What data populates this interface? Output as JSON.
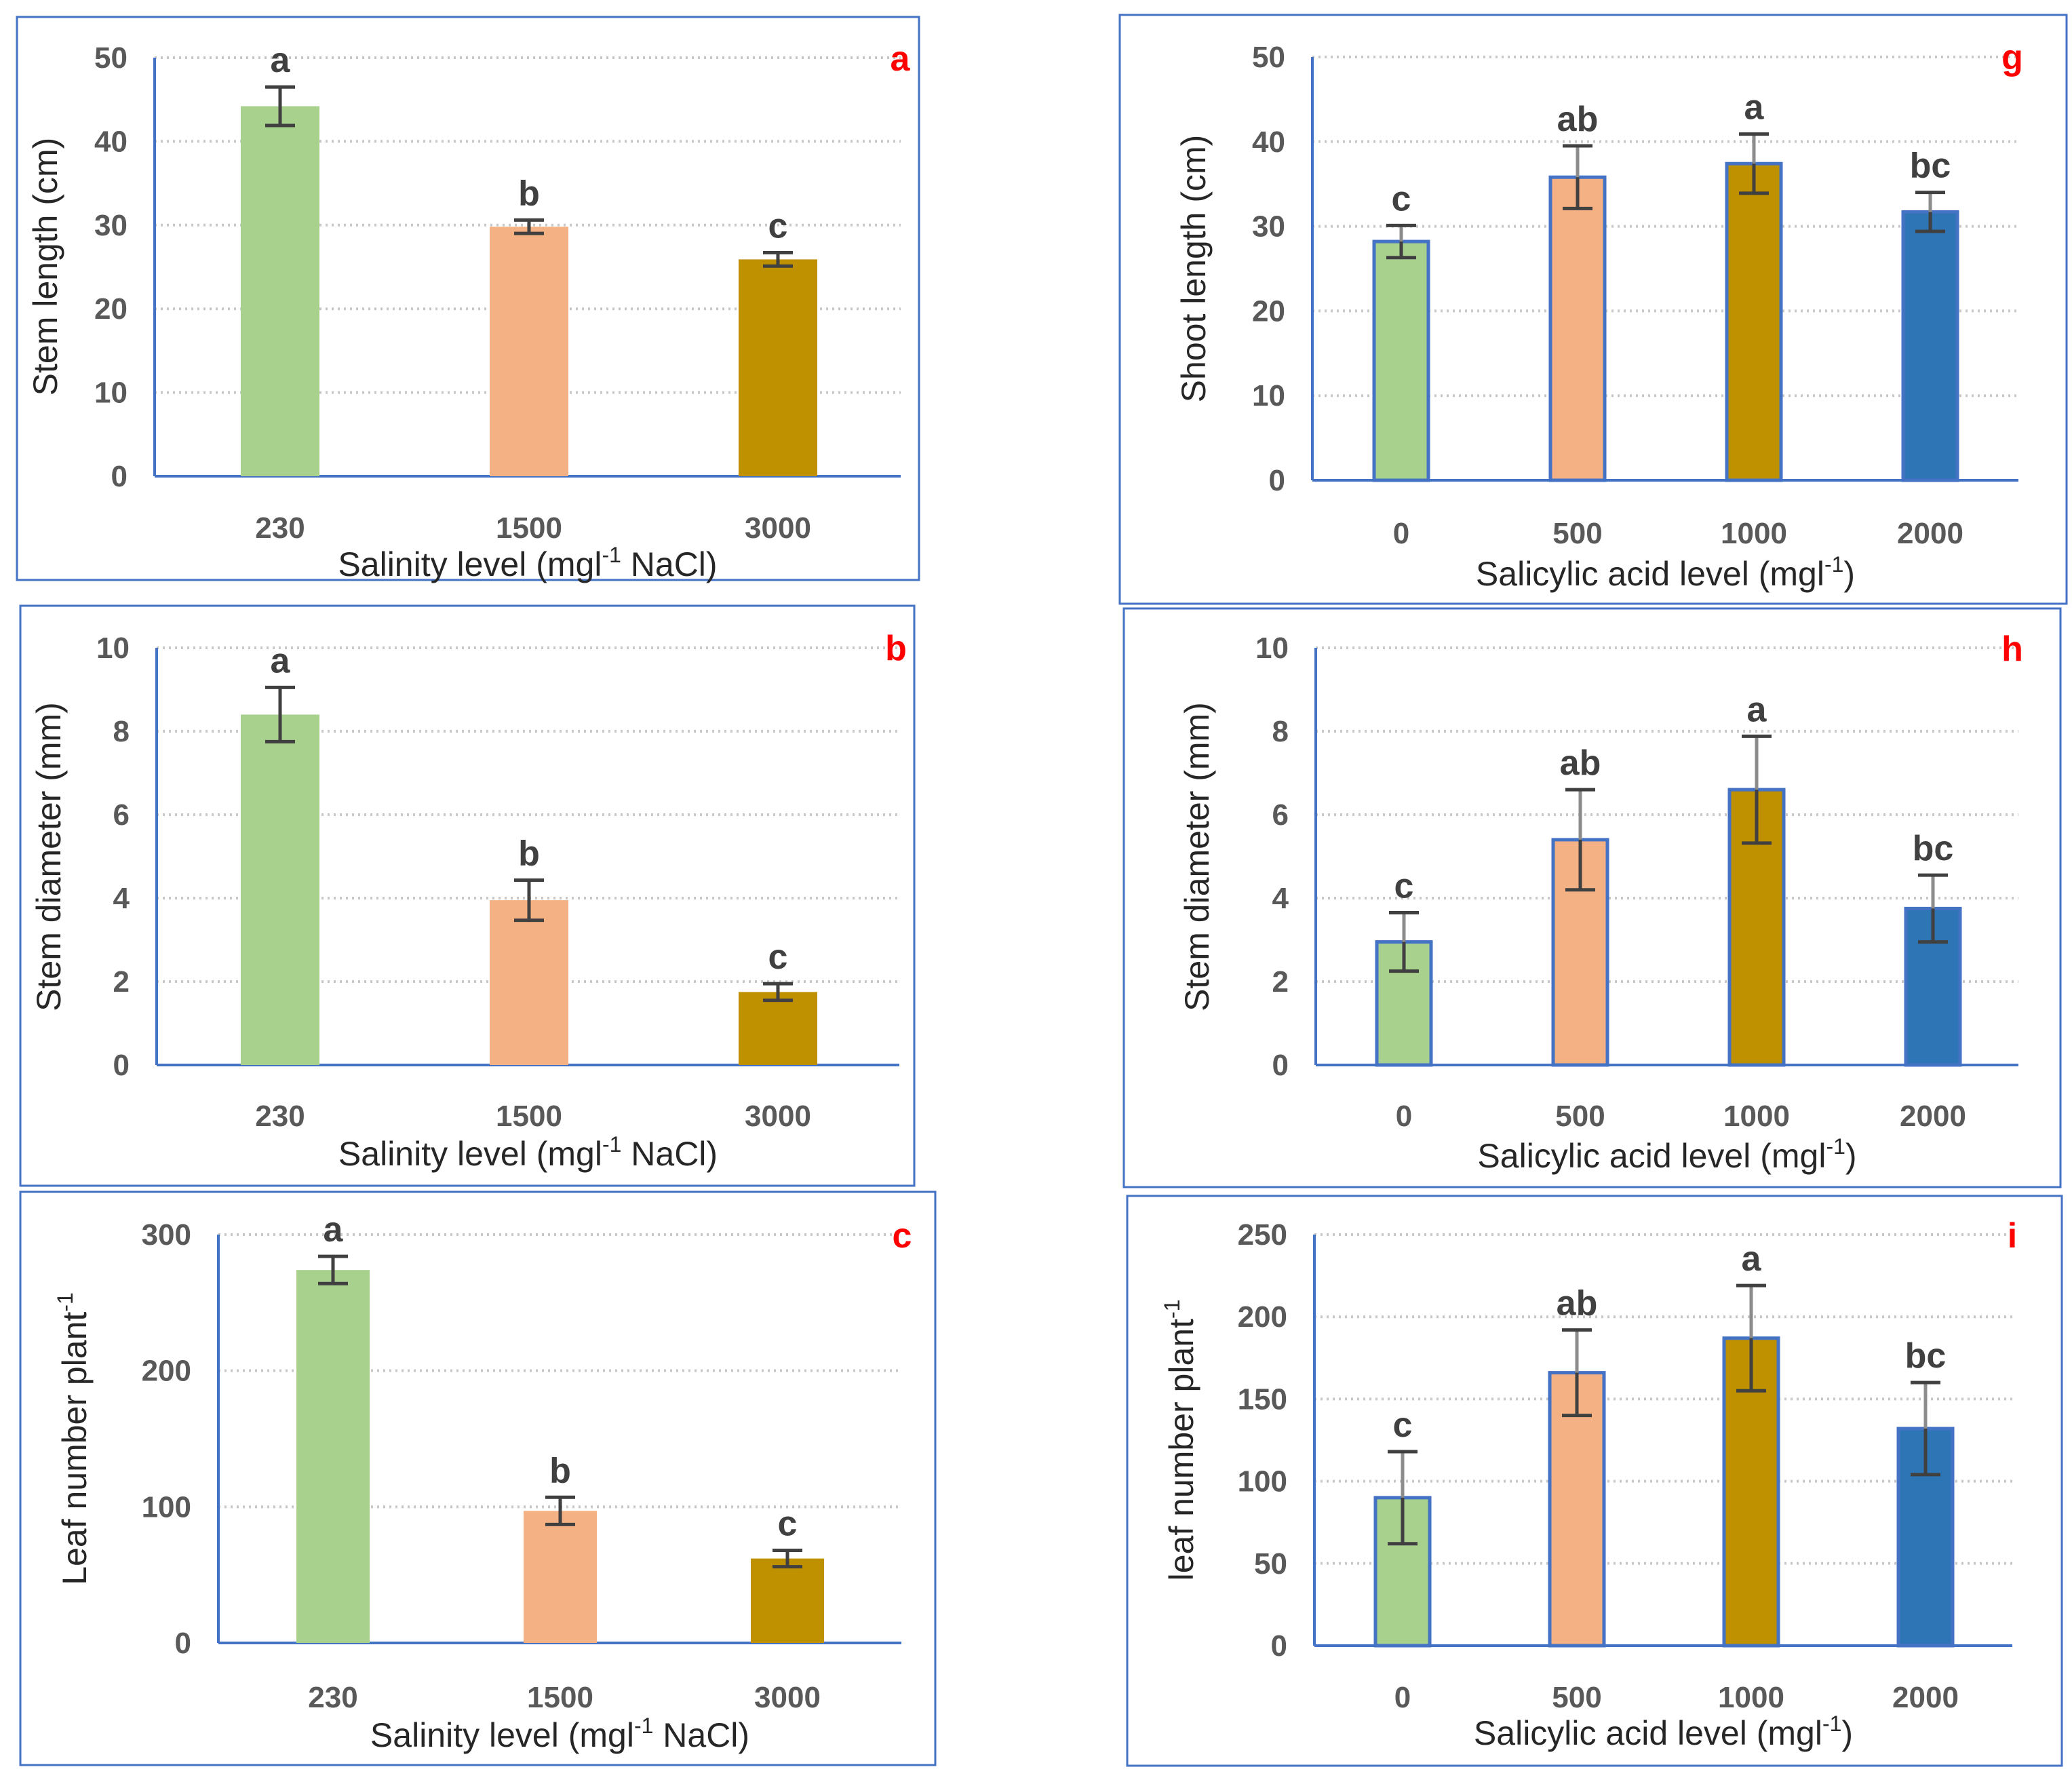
{
  "figure": {
    "colors": {
      "frame": "#4472c4",
      "axis": "#4472c4",
      "grid": "#c8c8c8",
      "series": [
        "#a9d18e",
        "#f4b183",
        "#bf9000",
        "#2e75b6"
      ],
      "bar_outline": "#4472c4",
      "error_bar_left": "#404040",
      "error_bar_right_upper": "#8c8c8c",
      "error_bar_right_lower": "#404040",
      "panel_letter": "#ff0000"
    }
  },
  "chart_data": [
    {
      "panel": "a",
      "type": "bar",
      "ylabel": "Stem length (cm)",
      "xlabel": {
        "main": "Salinity level (mgl",
        "sup": "-1",
        "tail": " NaCl)"
      },
      "categories": [
        "230",
        "1500",
        "3000"
      ],
      "values": [
        44.2,
        29.8,
        25.9
      ],
      "errors": [
        2.3,
        0.8,
        0.8
      ],
      "significance": [
        "a",
        "b",
        "c"
      ],
      "yticks": [
        "0",
        "10",
        "20",
        "30",
        "40",
        "50"
      ],
      "ylim": [
        0,
        50
      ]
    },
    {
      "panel": "b",
      "type": "bar",
      "ylabel": "Stem diameter (mm)",
      "xlabel": {
        "main": "Salinity level (mgl",
        "sup": "-1",
        "tail": " NaCl)"
      },
      "categories": [
        "230",
        "1500",
        "3000"
      ],
      "values": [
        8.4,
        3.95,
        1.75
      ],
      "errors": [
        0.65,
        0.48,
        0.2
      ],
      "significance": [
        "a",
        "b",
        "c"
      ],
      "yticks": [
        "0",
        "2",
        "4",
        "6",
        "8",
        "10"
      ],
      "ylim": [
        0,
        10
      ]
    },
    {
      "panel": "c",
      "type": "bar",
      "ylabel": {
        "main": "Leaf number plant",
        "sup": "-1"
      },
      "xlabel": {
        "main": "Salinity level (mgl",
        "sup": "-1",
        "tail": " NaCl)"
      },
      "categories": [
        "230",
        "1500",
        "3000"
      ],
      "values": [
        274,
        97,
        62
      ],
      "errors": [
        10,
        10,
        6
      ],
      "significance": [
        "a",
        "b",
        "c"
      ],
      "yticks": [
        "0",
        "100",
        "200",
        "300"
      ],
      "ylim": [
        0,
        300
      ]
    },
    {
      "panel": "g",
      "type": "bar",
      "ylabel": "Shoot length (cm)",
      "xlabel": {
        "main": "Salicylic acid level (mgl",
        "sup": "-1",
        "tail": ")"
      },
      "categories": [
        "0",
        "500",
        "1000",
        "2000"
      ],
      "values": [
        28.2,
        35.8,
        37.4,
        31.7
      ],
      "errors": [
        1.9,
        3.7,
        3.5,
        2.3
      ],
      "significance": [
        "c",
        "ab",
        "a",
        "bc"
      ],
      "yticks": [
        "0",
        "10",
        "20",
        "30",
        "40",
        "50"
      ],
      "ylim": [
        0,
        50
      ]
    },
    {
      "panel": "h",
      "type": "bar",
      "ylabel": "Stem diameter (mm)",
      "xlabel": {
        "main": "Salicylic acid level (mgl",
        "sup": "-1",
        "tail": ")"
      },
      "categories": [
        "0",
        "500",
        "1000",
        "2000"
      ],
      "values": [
        2.95,
        5.4,
        6.6,
        3.75
      ],
      "errors": [
        0.7,
        1.2,
        1.28,
        0.8
      ],
      "significance": [
        "c",
        "ab",
        "a",
        "bc"
      ],
      "yticks": [
        "0",
        "2",
        "4",
        "6",
        "8",
        "10"
      ],
      "ylim": [
        0,
        10
      ]
    },
    {
      "panel": "i",
      "type": "bar",
      "ylabel": {
        "main": "leaf number plant",
        "sup": "-1"
      },
      "xlabel": {
        "main": "Salicylic acid level (mgl",
        "sup": "-1",
        "tail": ")"
      },
      "categories": [
        "0",
        "500",
        "1000",
        "2000"
      ],
      "values": [
        90,
        166,
        187,
        132
      ],
      "errors": [
        28,
        26,
        32,
        28
      ],
      "significance": [
        "c",
        "ab",
        "a",
        "bc"
      ],
      "yticks": [
        "0",
        "50",
        "100",
        "150",
        "200",
        "250"
      ],
      "ylim": [
        0,
        250
      ]
    }
  ]
}
